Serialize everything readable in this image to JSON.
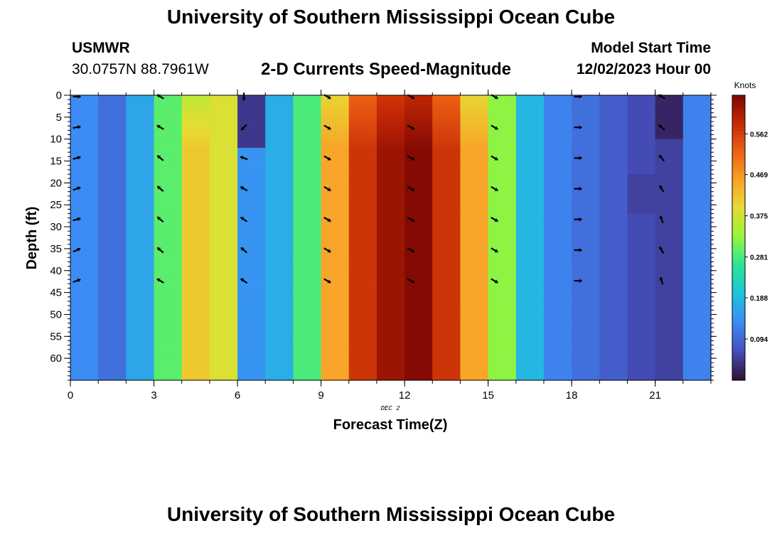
{
  "header": {
    "title": "University of Southern Mississippi Ocean Cube",
    "station_name": "USMWR",
    "station_coords": "30.0757N  88.7961W",
    "plot_title": "2-D Currents Speed-Magnitude",
    "model_start_label": "Model Start Time",
    "model_start_value": "12/02/2023 Hour 00"
  },
  "footer": {
    "title": "University of Southern Mississippi Ocean Cube"
  },
  "chart_data": {
    "type": "heatmap",
    "title": "2-D Currents Speed-Magnitude",
    "xlabel": "Forecast Time(Z)",
    "ylabel": "Depth (ft)",
    "date_label": "DEC 2",
    "colorbar_label": "Knots",
    "xlim": [
      0,
      23
    ],
    "ylim": [
      65,
      0
    ],
    "x_ticks": [
      0,
      3,
      6,
      9,
      12,
      15,
      18,
      21
    ],
    "y_ticks": [
      0,
      5,
      10,
      15,
      20,
      25,
      30,
      35,
      40,
      45,
      50,
      55,
      60
    ],
    "colorbar_ticks": [
      0.094,
      0.188,
      0.281,
      0.375,
      0.469,
      0.562
    ],
    "colorbar_range": [
      0.0,
      0.65
    ],
    "hours": [
      0,
      1,
      2,
      3,
      4,
      5,
      6,
      7,
      8,
      9,
      10,
      11,
      12,
      13,
      14,
      15,
      16,
      17,
      18,
      19,
      20,
      21,
      22
    ],
    "speed_by_hour": [
      0.13,
      0.1,
      0.16,
      0.29,
      0.41,
      0.38,
      0.14,
      0.17,
      0.28,
      0.45,
      0.57,
      0.62,
      0.64,
      0.57,
      0.45,
      0.32,
      0.18,
      0.12,
      0.1,
      0.08,
      0.06,
      0.05,
      0.12
    ],
    "anomalies": [
      {
        "hour": 6,
        "depth_min": 0,
        "depth_max": 12,
        "speed": 0.04
      },
      {
        "hour": 21,
        "depth_min": 0,
        "depth_max": 10,
        "speed": 0.02
      },
      {
        "hour": 20,
        "depth_min": 18,
        "depth_max": 27,
        "speed": 0.05
      }
    ],
    "vector_times": [
      0,
      3,
      6,
      9,
      12,
      15,
      18,
      21
    ],
    "vector_depths": [
      0,
      7,
      14,
      21,
      28,
      35,
      42
    ],
    "vector_directions_deg": {
      "0": [
        90,
        80,
        75,
        70,
        75,
        65,
        70
      ],
      "3": [
        300,
        300,
        310,
        310,
        310,
        310,
        300
      ],
      "6": [
        180,
        225,
        290,
        300,
        305,
        310,
        305
      ],
      "9": [
        120,
        120,
        120,
        120,
        120,
        120,
        120
      ],
      "12": [
        120,
        120,
        120,
        120,
        120,
        120,
        120
      ],
      "15": [
        120,
        120,
        120,
        120,
        120,
        120,
        120
      ],
      "18": [
        90,
        90,
        90,
        90,
        90,
        90,
        90
      ],
      "21": [
        300,
        310,
        320,
        330,
        340,
        330,
        340
      ]
    },
    "grid": false
  }
}
